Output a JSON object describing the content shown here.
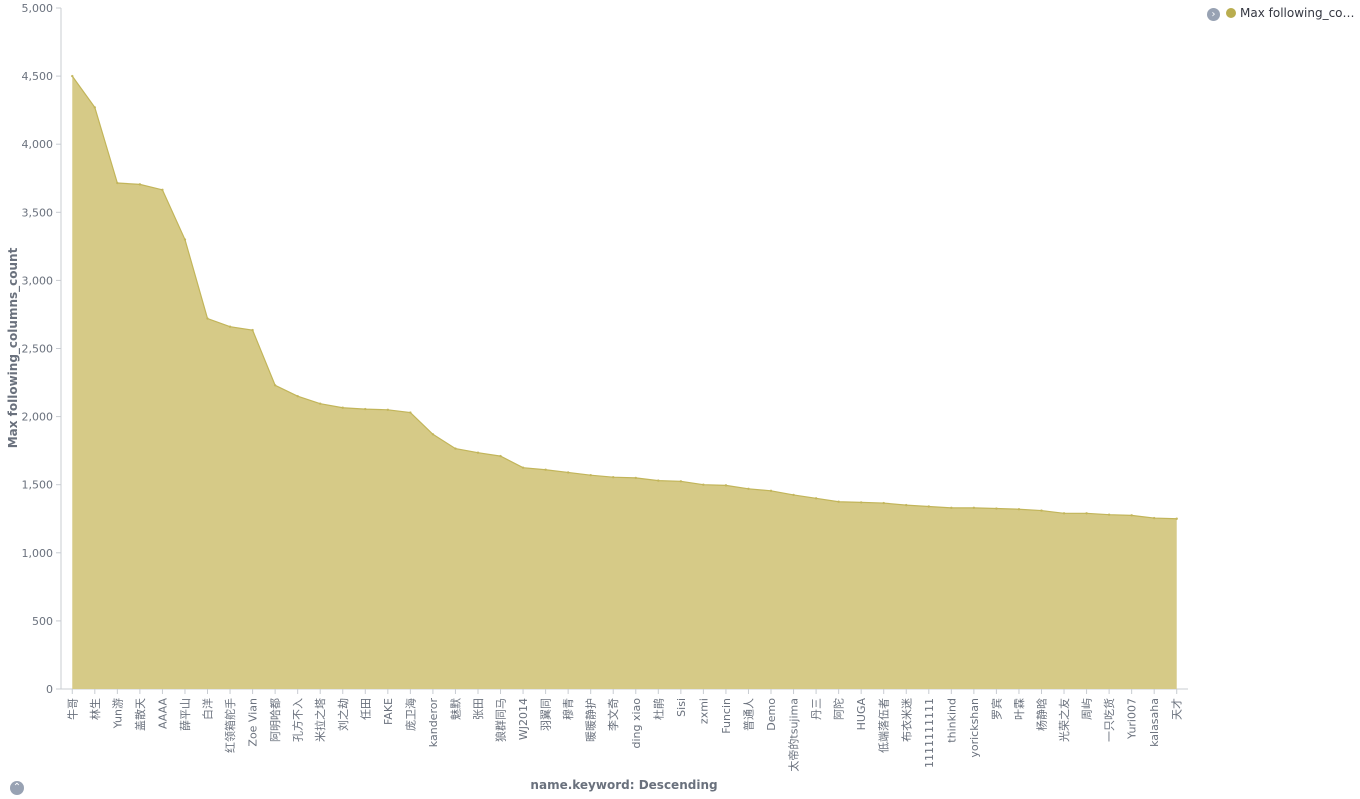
{
  "chart_data": {
    "type": "area",
    "title": "",
    "xlabel": "name.keyword: Descending",
    "ylabel": "Max following_columns_count",
    "ylim": [
      0,
      5000
    ],
    "yticks": [
      "0",
      "500",
      "1,000",
      "1,500",
      "2,000",
      "2,500",
      "3,000",
      "3,500",
      "4,000",
      "4,500",
      "5,000"
    ],
    "categories": [
      "牛哥",
      "林生",
      "Yun游",
      "盖散天",
      "AAAA",
      "薛平山",
      "白洋",
      "红领箱舵手",
      "Zoe Vian",
      "阿明哈都",
      "孔方不入",
      "米拉之塔",
      "刘之劫",
      "任田",
      "FAKE",
      "庞卫海",
      "kanderor",
      "魅默",
      "张田",
      "狼群同马",
      "WJ2014",
      "羽翼同",
      "穆青",
      "暖暖静护",
      "李文奇",
      "ding xiao",
      "杜鹃",
      "Sisi",
      "zxmi",
      "Funcin",
      "普通人",
      "Demo",
      "太帝的tsujima",
      "丹三",
      "阿陀",
      "HUGA",
      "低端落伍者",
      "布衣米迷",
      "1111111111",
      "thinkind",
      "yorickshan",
      "罗宾",
      "叶霖",
      "杨静晗",
      "光荣之友",
      "周屿",
      "一只吃货",
      "Yuri007",
      "kalasaha",
      "天才"
    ],
    "series": [
      {
        "name": "Max following_colum...",
        "color": "#d6ca87",
        "values": [
          4500,
          4270,
          3715,
          3705,
          3665,
          3300,
          2720,
          2660,
          2635,
          2230,
          2150,
          2095,
          2065,
          2055,
          2050,
          2030,
          1870,
          1765,
          1735,
          1710,
          1625,
          1610,
          1590,
          1570,
          1555,
          1550,
          1530,
          1525,
          1500,
          1495,
          1470,
          1455,
          1425,
          1400,
          1375,
          1370,
          1365,
          1350,
          1340,
          1330,
          1330,
          1325,
          1320,
          1310,
          1290,
          1290,
          1280,
          1275,
          1255,
          1250
        ]
      }
    ],
    "legend_position": "top-right",
    "grid": false
  },
  "legend": {
    "label": "Max following_colum...",
    "color": "#b9ad4f",
    "toggle_icon": "chevron-right-icon"
  },
  "controls": {
    "collapse_icon": "chevron-up-icon"
  }
}
